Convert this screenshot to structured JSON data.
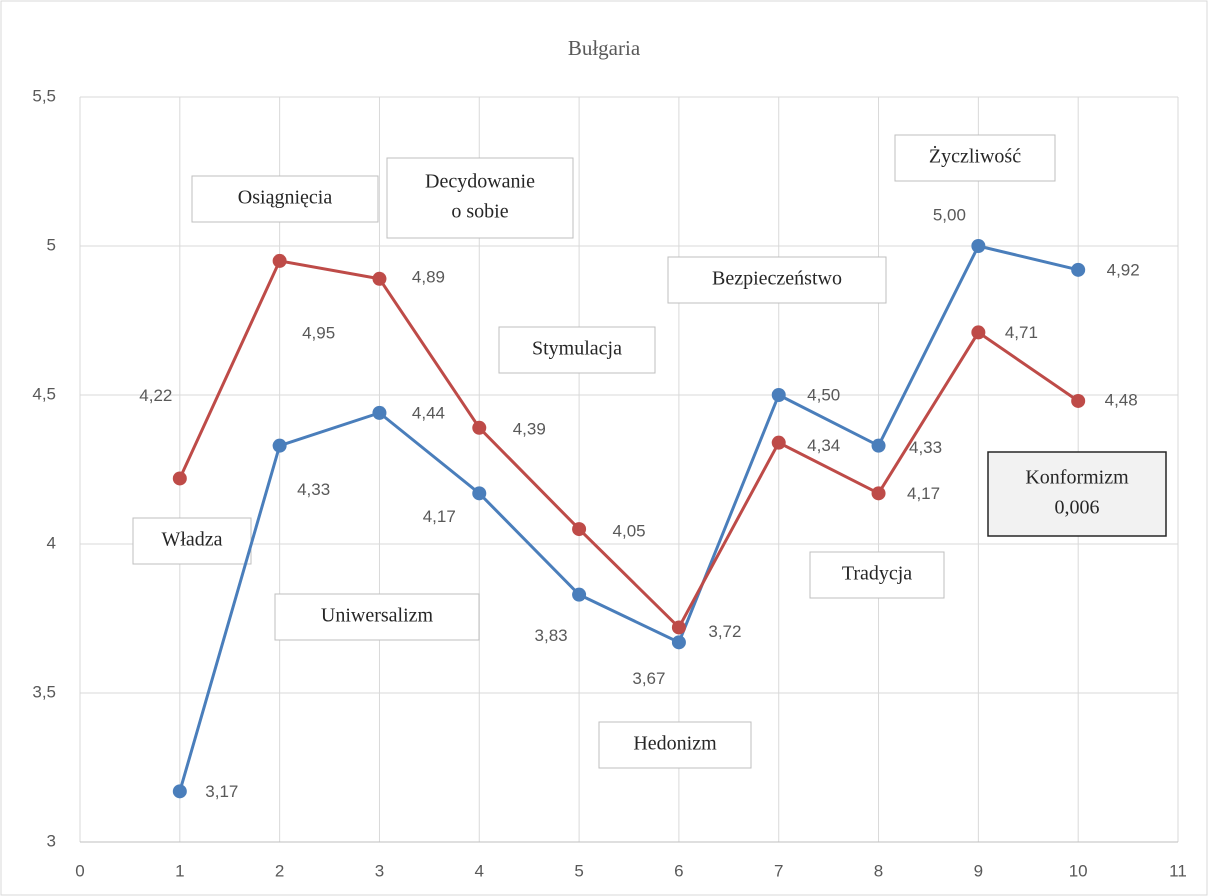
{
  "chart_data": {
    "type": "line",
    "title": "Bułgaria",
    "x": [
      1,
      2,
      3,
      4,
      5,
      6,
      7,
      8,
      9,
      10
    ],
    "series": [
      {
        "color": "#4a7ebb",
        "values": [
          3.17,
          4.33,
          4.44,
          4.17,
          3.83,
          3.67,
          4.5,
          4.33,
          5.0,
          4.92
        ],
        "value_labels": [
          "3,17",
          "4,33",
          "4,44",
          "4,17",
          "3,83",
          "3,67",
          "4,50",
          "4,33",
          "5,00",
          "4,92"
        ]
      },
      {
        "color": "#be4b48",
        "values": [
          4.22,
          4.95,
          4.89,
          4.39,
          4.05,
          3.72,
          4.34,
          4.17,
          4.71,
          4.48
        ],
        "value_labels": [
          "4,22",
          "4,95",
          "4,89",
          "4,39",
          "4,05",
          "3,72",
          "4,34",
          "4,17",
          "4,71",
          "4,48"
        ]
      }
    ],
    "xlim": [
      0,
      11
    ],
    "xticks": [
      0,
      1,
      2,
      3,
      4,
      5,
      6,
      7,
      8,
      9,
      10,
      11
    ],
    "ylim": [
      3,
      5.5
    ],
    "yticks": [
      3,
      {
        "value": 3.5,
        "label": "3,5"
      },
      4,
      {
        "value": 4.5,
        "label": "4,5"
      },
      5,
      {
        "value": 5.5,
        "label": "5,5"
      }
    ],
    "grid": true,
    "annotations": [
      [
        "Władza"
      ],
      [
        "Osiągnięcia"
      ],
      [
        "Decydowanie",
        "o sobie"
      ],
      [
        "Stymulacja"
      ],
      [
        "Uniwersalizm"
      ],
      [
        "Hedonizm"
      ],
      [
        "Bezpieczeństwo"
      ],
      [
        "Tradycja"
      ],
      [
        "Życzliwość"
      ],
      [
        "Konformizm",
        "0,006"
      ]
    ]
  }
}
